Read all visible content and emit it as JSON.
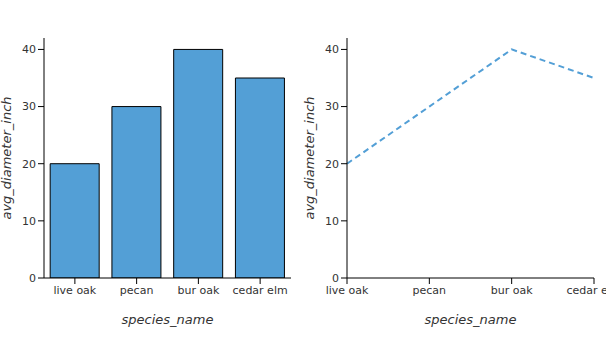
{
  "chart_data": [
    {
      "type": "bar",
      "categories": [
        "live oak",
        "pecan",
        "bur oak",
        "cedar elm"
      ],
      "values": [
        20,
        30,
        40,
        35
      ],
      "color": "#539fd6",
      "x_label": "species_name",
      "y_label": "avg_diameter_inch",
      "ylim": [
        0,
        42
      ],
      "yticks": [
        0,
        10,
        20,
        30,
        40
      ]
    },
    {
      "type": "line",
      "categories": [
        "live oak",
        "pecan",
        "bur oak",
        "cedar elm"
      ],
      "values": [
        20,
        30,
        40,
        35
      ],
      "color": "#539fd6",
      "line_style": "dashed",
      "x_label": "species_name",
      "y_label": "avg_diameter_inch",
      "ylim": [
        0,
        42
      ],
      "yticks": [
        0,
        10,
        20,
        30,
        40
      ]
    }
  ]
}
